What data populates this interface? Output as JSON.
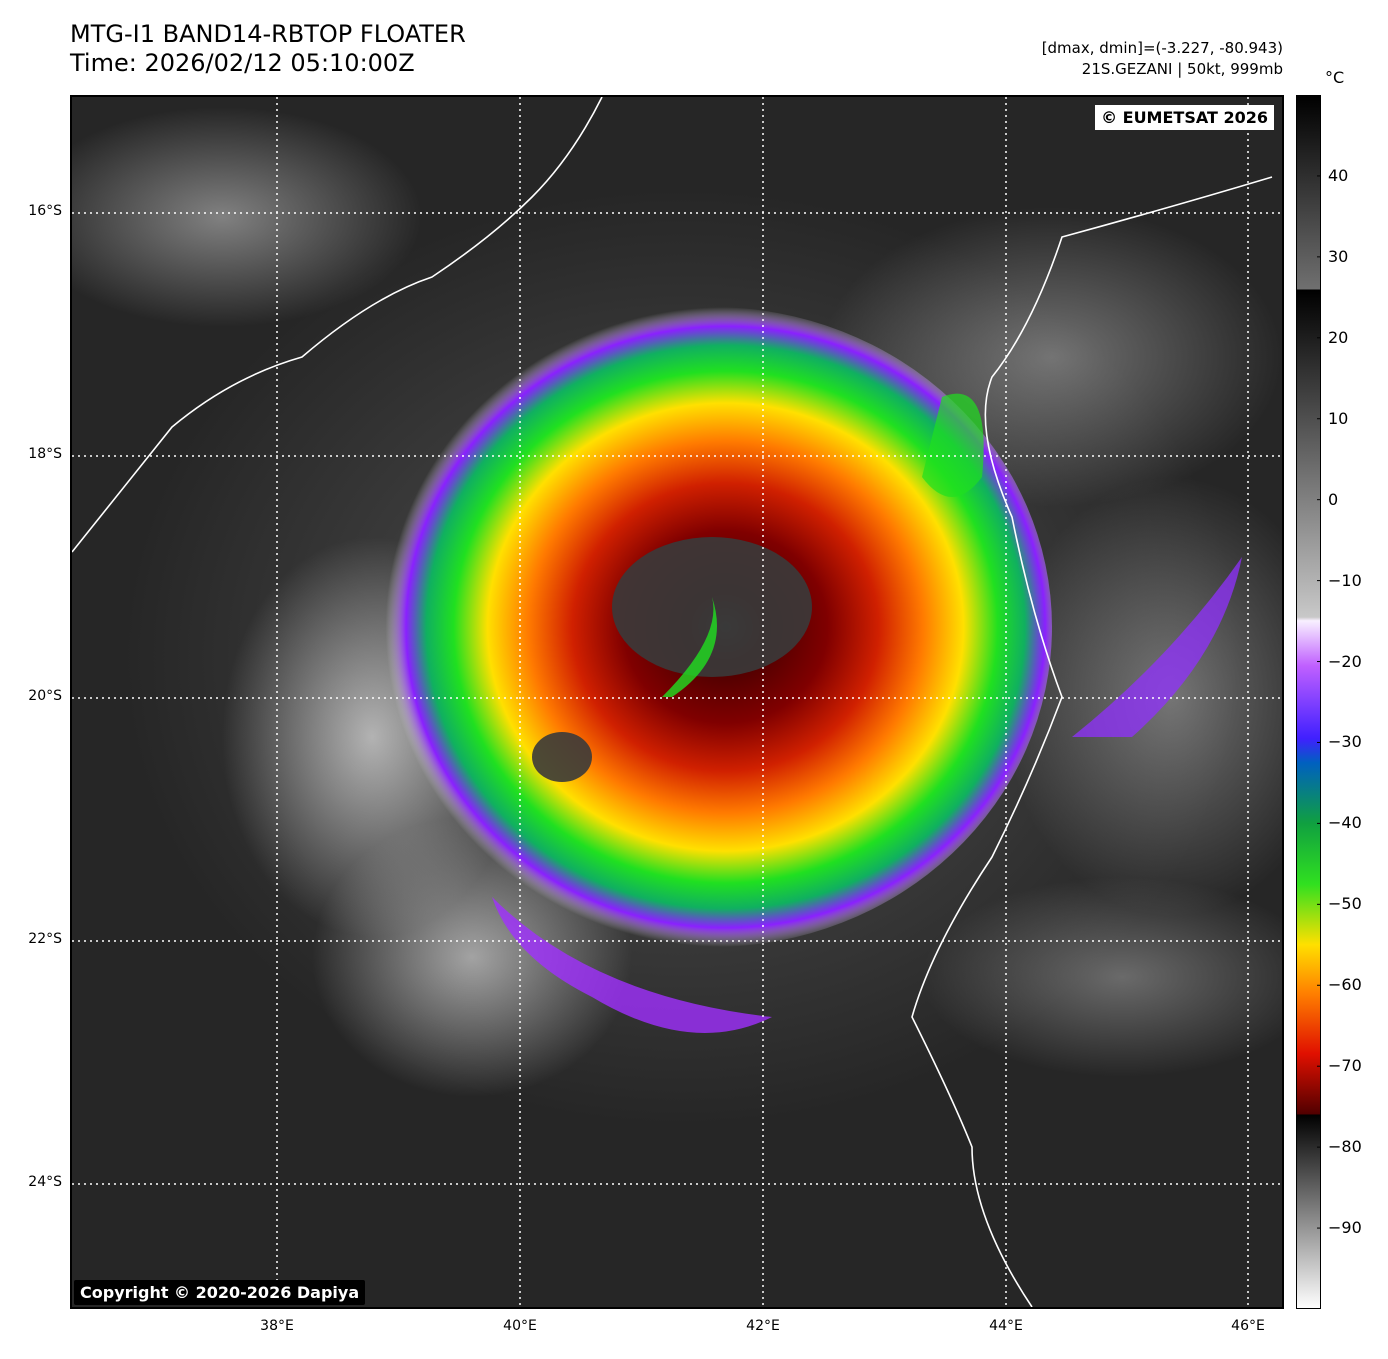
{
  "header": {
    "title_line1": "MTG-I1 BAND14-RBTOP FLOATER",
    "title_line2": "Time: 2026/02/12 05:10:00Z",
    "range_info": "[dmax, dmin]=(-3.227, -80.943)",
    "storm_info": "21S.GEZANI | 50kt, 999mb"
  },
  "map": {
    "eumetsat_credit": "© EUMETSAT 2026",
    "copyright": "Copyright © 2020-2026 Dapiya",
    "lat_labels": [
      "16°S",
      "18°S",
      "20°S",
      "22°S",
      "24°S"
    ],
    "lon_labels": [
      "38°E",
      "40°E",
      "42°E",
      "44°E",
      "46°E"
    ]
  },
  "colorbar": {
    "unit": "°C",
    "ticks": [
      "40",
      "30",
      "20",
      "10",
      "0",
      "−10",
      "−20",
      "−30",
      "−40",
      "−50",
      "−60",
      "−70",
      "−80",
      "−90"
    ],
    "tick_values": [
      40,
      30,
      20,
      10,
      0,
      -10,
      -20,
      -30,
      -40,
      -50,
      -60,
      -70,
      -80,
      -90
    ],
    "range": [
      -100,
      50
    ]
  }
}
